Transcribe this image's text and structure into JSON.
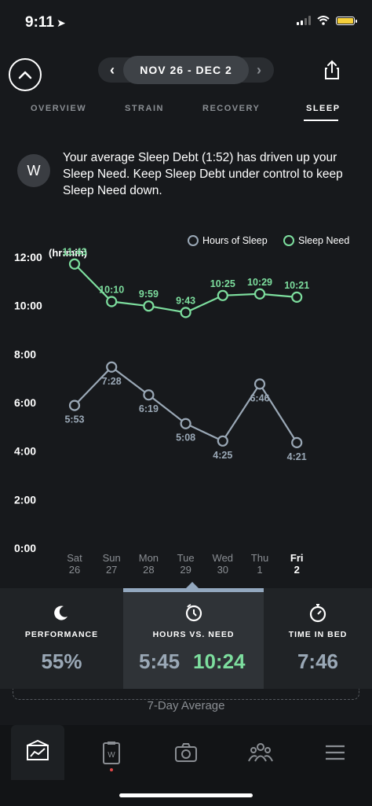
{
  "status_bar": {
    "time": "9:11"
  },
  "header": {
    "date_range": "NOV 26 - DEC 2",
    "tabs": [
      {
        "label": "OVERVIEW",
        "active": false
      },
      {
        "label": "STRAIN",
        "active": false
      },
      {
        "label": "RECOVERY",
        "active": false
      },
      {
        "label": "SLEEP",
        "active": true
      }
    ]
  },
  "insight": {
    "icon": "w-logo-icon",
    "text": "Your average Sleep Debt (1:52) has driven up your Sleep Need. Keep Sleep Debt under control to keep Sleep Need down."
  },
  "chart_data": {
    "type": "line",
    "unit_label": "(hr:min)",
    "categories": [
      {
        "day": "Sat",
        "date": "26"
      },
      {
        "day": "Sun",
        "date": "27"
      },
      {
        "day": "Mon",
        "date": "28"
      },
      {
        "day": "Tue",
        "date": "29"
      },
      {
        "day": "Wed",
        "date": "30"
      },
      {
        "day": "Thu",
        "date": "1"
      },
      {
        "day": "Fri",
        "date": "2"
      }
    ],
    "active_index": 6,
    "y_ticks": [
      "0:00",
      "2:00",
      "4:00",
      "6:00",
      "8:00",
      "10:00",
      "12:00"
    ],
    "ylim": [
      0,
      12
    ],
    "legend_position": "top-right",
    "series": [
      {
        "name": "Hours of Sleep",
        "color": "#9aa8b6",
        "values": [
          5.883,
          7.467,
          6.317,
          5.133,
          4.417,
          6.767,
          4.35
        ],
        "labels": [
          "5:53",
          "7:28",
          "6:19",
          "5:08",
          "4:25",
          "6:46",
          "4:21"
        ]
      },
      {
        "name": "Sleep Need",
        "color": "#7dde9e",
        "values": [
          11.717,
          10.167,
          9.983,
          9.717,
          10.417,
          10.483,
          10.35
        ],
        "labels": [
          "11:43",
          "10:10",
          "9:59",
          "9:43",
          "10:25",
          "10:29",
          "10:21"
        ]
      }
    ]
  },
  "stats": {
    "performance": {
      "label": "PERFORMANCE",
      "value": "55%"
    },
    "hours_vs_need": {
      "label": "HOURS VS. NEED",
      "hours": "5:45",
      "need": "10:24"
    },
    "time_in_bed": {
      "label": "TIME IN BED",
      "value": "7:46"
    }
  },
  "average_label": "7-Day Average"
}
